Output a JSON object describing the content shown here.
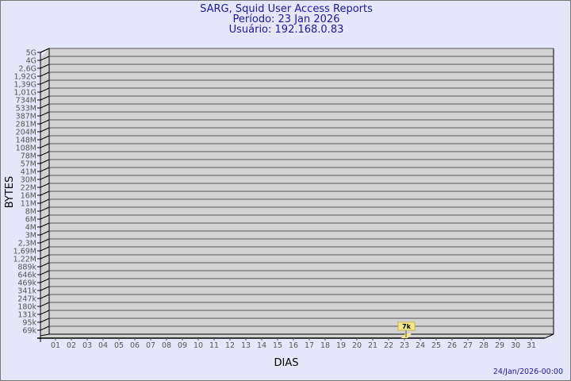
{
  "chart_data": {
    "type": "bar",
    "title": "SARG, Squid User Access Reports",
    "subtitle": [
      "Período: 23 Jan 2026",
      "Usuário: 192.168.0.83"
    ],
    "xlabel": "DIAS",
    "ylabel": "BYTES",
    "categories": [
      "01",
      "02",
      "03",
      "04",
      "05",
      "06",
      "07",
      "08",
      "09",
      "10",
      "11",
      "12",
      "13",
      "14",
      "15",
      "16",
      "17",
      "18",
      "19",
      "20",
      "21",
      "22",
      "23",
      "24",
      "25",
      "26",
      "27",
      "28",
      "29",
      "30",
      "31"
    ],
    "values": [
      0,
      0,
      0,
      0,
      0,
      0,
      0,
      0,
      0,
      0,
      0,
      0,
      0,
      0,
      0,
      0,
      0,
      0,
      0,
      0,
      0,
      0,
      7000,
      0,
      0,
      0,
      0,
      0,
      0,
      0,
      0
    ],
    "data_labels": {
      "23": "7k"
    },
    "y_ticks": [
      "5G",
      "4G",
      "2,6G",
      "1,92G",
      "1,39G",
      "1,01G",
      "734M",
      "533M",
      "387M",
      "281M",
      "204M",
      "148M",
      "108M",
      "78M",
      "57M",
      "41M",
      "30M",
      "22M",
      "16M",
      "11M",
      "8M",
      "6M",
      "4M",
      "3M",
      "2,3M",
      "1,69M",
      "1,22M",
      "889k",
      "646k",
      "469k",
      "341k",
      "247k",
      "180k",
      "131k",
      "95k",
      "69k"
    ],
    "y_scale": "log",
    "grid": true,
    "footer": "24/Jan/2026-00:00",
    "colors": {
      "background": "#e6e6fa",
      "plot": "#d3d3d3",
      "bar": "#f5e98c",
      "title": "#1a1a99"
    }
  }
}
